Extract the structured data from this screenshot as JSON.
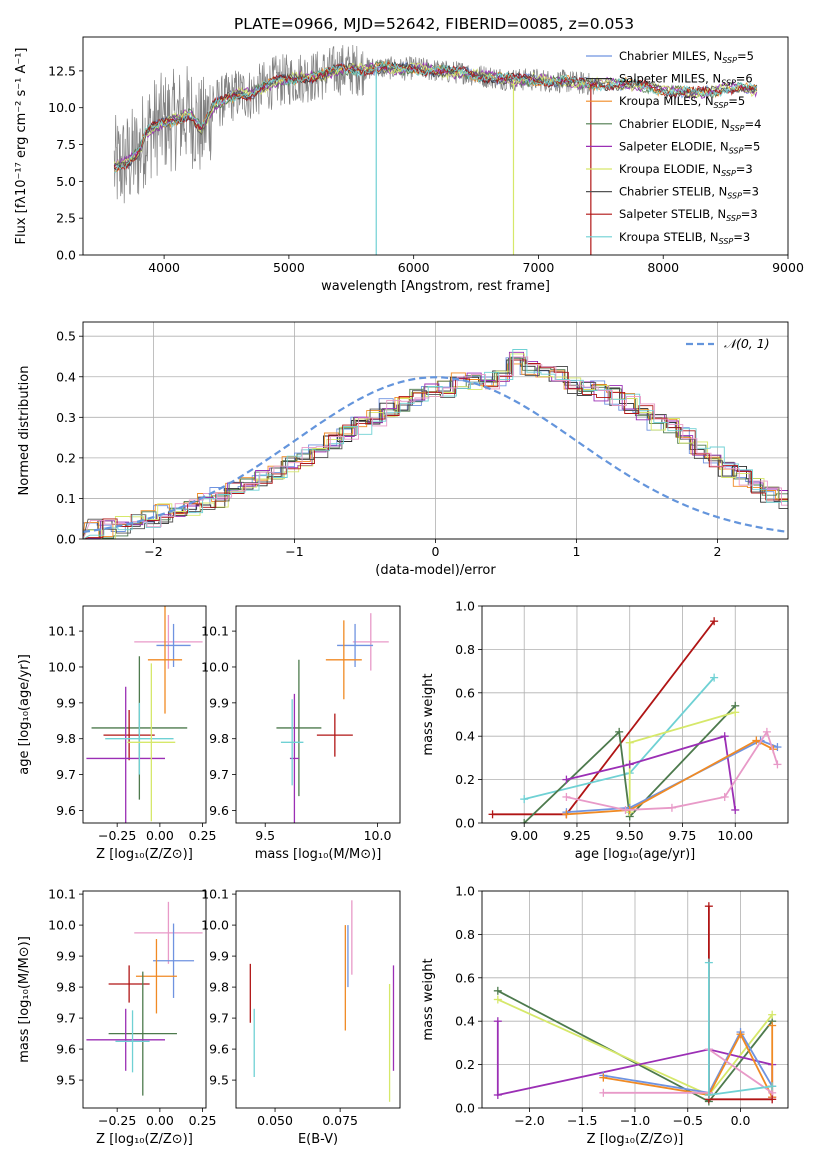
{
  "figure_title": "PLATE=0966, MJD=52642, FIBERID=0085, z=0.053",
  "series_colors": [
    "#6f93e0",
    "#2b2b2b",
    "#f08a24",
    "#4d7a4d",
    "#9b2fb5",
    "#d6e86a",
    "#555555",
    "#b01515",
    "#6fd1d4"
  ],
  "chart_data": [
    {
      "type": "line",
      "panel": "spectrum",
      "xlabel": "wavelength [Angstrom, rest frame]",
      "ylabel": "Flux [fλ10⁻¹⁷ erg cm⁻² s⁻¹ A⁻¹]",
      "xlim": [
        3350,
        9000
      ],
      "ylim": [
        0,
        14.8
      ],
      "xticks": [
        "4000",
        "5000",
        "6000",
        "7000",
        "8000",
        "9000"
      ],
      "xtick_values": [
        4000,
        5000,
        6000,
        7000,
        8000,
        9000
      ],
      "yticks": [
        "0.0",
        "2.5",
        "5.0",
        "7.5",
        "10.0",
        "12.5"
      ],
      "ytick_values": [
        0,
        2.5,
        5,
        7.5,
        10,
        12.5
      ],
      "grid": false,
      "legend_position": "right",
      "data_series": {
        "name": "",
        "color": "#808080",
        "x_range": [
          3600,
          7450
        ]
      },
      "model_continuum": {
        "x": [
          3600,
          3700,
          3800,
          3850,
          3900,
          4000,
          4100,
          4200,
          4300,
          4400,
          4500,
          4600,
          4700,
          4800,
          4900,
          5000,
          5100,
          5200,
          5300,
          5400,
          5500,
          5600,
          5700,
          5800,
          5900,
          6000,
          6100,
          6200,
          6300,
          6400,
          6500,
          6600,
          6700,
          6800,
          6900,
          7000,
          7100,
          7200,
          7300,
          7400,
          7500,
          7600,
          7700,
          7800,
          7900,
          8000,
          8100,
          8200,
          8300,
          8400,
          8500,
          8600,
          8700
        ],
        "y": [
          6.0,
          6.3,
          7.0,
          8.2,
          8.6,
          9.0,
          9.2,
          9.6,
          8.5,
          10.2,
          10.6,
          11.0,
          10.9,
          11.4,
          11.8,
          11.9,
          12.1,
          12.1,
          12.3,
          12.6,
          12.6,
          12.6,
          12.7,
          12.7,
          12.6,
          12.7,
          12.6,
          12.5,
          12.4,
          12.4,
          12.2,
          12.1,
          12.0,
          11.9,
          11.9,
          11.9,
          11.8,
          11.8,
          11.7,
          11.6,
          11.6,
          11.6,
          11.6,
          11.5,
          11.4,
          11.2,
          11.1,
          11.0,
          11.0,
          11.1,
          11.3,
          11.4,
          11.2
        ]
      },
      "series": [
        {
          "name": "Chabrier MILES, N",
          "sub": "SSP",
          "suffix": "=5",
          "color": "#6f93e0"
        },
        {
          "name": "Salpeter MILES, N",
          "sub": "SSP",
          "suffix": "=6",
          "color": "#2b2b2b"
        },
        {
          "name": "Kroupa MILES, N",
          "sub": "SSP",
          "suffix": "=5",
          "color": "#f08a24"
        },
        {
          "name": "Chabrier ELODIE, N",
          "sub": "SSP",
          "suffix": "=4",
          "color": "#4d7a4d"
        },
        {
          "name": "Salpeter ELODIE, N",
          "sub": "SSP",
          "suffix": "=5",
          "color": "#9b2fb5"
        },
        {
          "name": "Kroupa ELODIE, N",
          "sub": "SSP",
          "suffix": "=3",
          "color": "#d6e86a"
        },
        {
          "name": "Chabrier STELIB, N",
          "sub": "SSP",
          "suffix": "=3",
          "color": "#555555"
        },
        {
          "name": "Salpeter STELIB, N",
          "sub": "SSP",
          "suffix": "=3",
          "color": "#b01515"
        },
        {
          "name": "Kroupa STELIB, N",
          "sub": "SSP",
          "suffix": "=3",
          "color": "#6fd1d4"
        }
      ]
    },
    {
      "type": "line",
      "panel": "residuals",
      "xlabel": "(data-model)/error",
      "ylabel": "Normed distribution",
      "xlim": [
        -2.5,
        2.5
      ],
      "ylim": [
        0,
        0.535
      ],
      "xticks": [
        "−2",
        "−1",
        "0",
        "1",
        "2"
      ],
      "xtick_values": [
        -2,
        -1,
        0,
        1,
        2
      ],
      "yticks": [
        "0.0",
        "0.1",
        "0.2",
        "0.3",
        "0.4",
        "0.5"
      ],
      "ytick_values": [
        0,
        0.1,
        0.2,
        0.3,
        0.4,
        0.5
      ],
      "grid": true,
      "legend_position": "top-right",
      "legend": "𝒩(0, 1)",
      "bin_width": 0.1,
      "base_hist": {
        "x_start": -2.5,
        "values": [
          0.02,
          0.02,
          0.03,
          0.04,
          0.05,
          0.06,
          0.07,
          0.08,
          0.09,
          0.1,
          0.12,
          0.13,
          0.15,
          0.16,
          0.18,
          0.2,
          0.22,
          0.24,
          0.26,
          0.28,
          0.3,
          0.32,
          0.33,
          0.35,
          0.36,
          0.37,
          0.38,
          0.39,
          0.39,
          0.4,
          0.45,
          0.42,
          0.41,
          0.4,
          0.38,
          0.37,
          0.36,
          0.35,
          0.33,
          0.31,
          0.29,
          0.27,
          0.25,
          0.22,
          0.2,
          0.17,
          0.15,
          0.13,
          0.11,
          0.09,
          0.07,
          0.06,
          0.05,
          0.04,
          0.04,
          0.03,
          0.03,
          0.02,
          0.02,
          0.02
        ]
      },
      "normal_curve": {
        "mean": 0,
        "std": 1,
        "color": "#6495dc",
        "dash": true
      }
    },
    {
      "type": "scatter",
      "panel": "age-vs-Z",
      "xlabel": "Z [log₁₀(Z/Z⊙)]",
      "ylabel": "age  [log₁₀(age/yr)]",
      "xlim": [
        -0.45,
        0.27
      ],
      "ylim": [
        9.565,
        10.17
      ],
      "xticks": [
        "−0.25",
        "0.00",
        "0.25"
      ],
      "xtick_values": [
        -0.25,
        0,
        0.25
      ],
      "yticks": [
        "9.6",
        "9.7",
        "9.8",
        "9.9",
        "10.0",
        "10.1"
      ],
      "ytick_values": [
        9.6,
        9.7,
        9.8,
        9.9,
        10.0,
        10.1
      ],
      "grid": false,
      "points": [
        {
          "x": 0.05,
          "xerr": 0.2,
          "y": 10.07,
          "yerr": 0.075,
          "color": "#e89ac8"
        },
        {
          "x": 0.08,
          "xerr": 0.1,
          "y": 10.06,
          "yerr": 0.06,
          "color": "#6f93e0"
        },
        {
          "x": 0.03,
          "xerr": 0.1,
          "y": 10.02,
          "yerr": 0.15,
          "color": "#f08a24"
        },
        {
          "x": -0.12,
          "xerr": 0.28,
          "y": 9.83,
          "yerr": 0.2,
          "color": "#4d7a4d"
        },
        {
          "x": -0.18,
          "xerr": 0.15,
          "y": 9.81,
          "yerr": 0.07,
          "color": "#b01515"
        },
        {
          "x": -0.2,
          "xerr": 0.23,
          "y": 9.745,
          "yerr": 0.2,
          "color": "#9b2fb5"
        },
        {
          "x": -0.12,
          "xerr": 0.2,
          "y": 9.8,
          "yerr": 0.1,
          "color": "#6fd1d4"
        },
        {
          "x": -0.05,
          "xerr": 0.14,
          "y": 9.79,
          "yerr": 0.22,
          "color": "#d6e86a"
        }
      ]
    },
    {
      "type": "scatter",
      "panel": "age-vs-mass",
      "xlabel": "mass [log₁₀(M/M⊙)]",
      "ylabel": "",
      "xlim": [
        9.37,
        10.1
      ],
      "ylim": [
        9.565,
        10.17
      ],
      "xticks": [
        "9.5",
        "10.0"
      ],
      "xtick_values": [
        9.5,
        10.0
      ],
      "yticks": [
        "9.6",
        "9.7",
        "9.8",
        "9.9",
        "10.0",
        "10.1"
      ],
      "ytick_values": [
        9.6,
        9.7,
        9.8,
        9.9,
        10.0,
        10.1
      ],
      "grid": false,
      "points": [
        {
          "x": 9.97,
          "xerr": 0.08,
          "y": 10.07,
          "yerr": 0.08,
          "color": "#e89ac8"
        },
        {
          "x": 9.9,
          "xerr": 0.08,
          "y": 10.06,
          "yerr": 0.06,
          "color": "#6f93e0"
        },
        {
          "x": 9.85,
          "xerr": 0.08,
          "y": 10.02,
          "yerr": 0.11,
          "color": "#f08a24"
        },
        {
          "x": 9.65,
          "xerr": 0.1,
          "y": 9.83,
          "yerr": 0.19,
          "color": "#4d7a4d"
        },
        {
          "x": 9.81,
          "xerr": 0.08,
          "y": 9.81,
          "yerr": 0.06,
          "color": "#b01515"
        },
        {
          "x": 9.63,
          "xerr": 0.02,
          "y": 9.745,
          "yerr": 0.18,
          "color": "#9b2fb5"
        },
        {
          "x": 9.62,
          "xerr": 0.05,
          "y": 9.79,
          "yerr": 0.12,
          "color": "#6fd1d4"
        }
      ]
    },
    {
      "type": "line",
      "panel": "mass-weight-vs-age",
      "xlabel": "age  [log₁₀(age/yr)]",
      "ylabel": "mass weight",
      "xlim": [
        8.8,
        10.25
      ],
      "ylim": [
        0,
        1.0
      ],
      "xticks": [
        "9.00",
        "9.25",
        "9.50",
        "9.75",
        "10.00"
      ],
      "xtick_values": [
        9.0,
        9.25,
        9.5,
        9.75,
        10.0
      ],
      "yticks": [
        "0.0",
        "0.2",
        "0.4",
        "0.6",
        "0.8",
        "1.0"
      ],
      "ytick_values": [
        0,
        0.2,
        0.4,
        0.6,
        0.8,
        1.0
      ],
      "grid": true,
      "series": [
        {
          "color": "#b01515",
          "x": [
            8.85,
            9.2,
            9.9
          ],
          "y": [
            0.04,
            0.04,
            0.93
          ]
        },
        {
          "color": "#6fd1d4",
          "x": [
            9.0,
            9.5,
            9.9
          ],
          "y": [
            0.11,
            0.23,
            0.67
          ]
        },
        {
          "color": "#4d7a4d",
          "x": [
            9.0,
            9.45,
            9.5,
            10.0
          ],
          "y": [
            0.0,
            0.42,
            0.03,
            0.54
          ]
        },
        {
          "color": "#d6e86a",
          "x": [
            9.5,
            9.5,
            10.0
          ],
          "y": [
            0.05,
            0.37,
            0.51
          ]
        },
        {
          "color": "#9b2fb5",
          "x": [
            9.2,
            9.5,
            9.95,
            10.0
          ],
          "y": [
            0.2,
            0.27,
            0.4,
            0.06
          ]
        },
        {
          "color": "#6f93e0",
          "x": [
            9.2,
            9.5,
            10.12,
            10.2
          ],
          "y": [
            0.05,
            0.07,
            0.38,
            0.35
          ]
        },
        {
          "color": "#f08a24",
          "x": [
            9.2,
            9.5,
            10.1,
            10.18
          ],
          "y": [
            0.04,
            0.06,
            0.38,
            0.34
          ]
        },
        {
          "color": "#e89ac8",
          "x": [
            9.2,
            9.48,
            9.7,
            9.95,
            10.15,
            10.2
          ],
          "y": [
            0.12,
            0.06,
            0.07,
            0.12,
            0.42,
            0.27
          ]
        }
      ]
    },
    {
      "type": "scatter",
      "panel": "mass-vs-Z",
      "xlabel": "Z [log₁₀(Z/Z⊙)]",
      "ylabel": "mass [log₁₀(M/M⊙)]",
      "xlim": [
        -0.45,
        0.27
      ],
      "ylim": [
        9.41,
        10.11
      ],
      "xticks": [
        "−0.25",
        "0.00",
        "0.25"
      ],
      "xtick_values": [
        -0.25,
        0,
        0.25
      ],
      "yticks": [
        "9.5",
        "9.6",
        "9.7",
        "9.8",
        "9.9",
        "10.0",
        "10.1"
      ],
      "ytick_values": [
        9.5,
        9.6,
        9.7,
        9.8,
        9.9,
        10.0,
        10.1
      ],
      "grid": false,
      "points": [
        {
          "x": 0.05,
          "xerr": 0.2,
          "y": 9.975,
          "yerr": 0.1,
          "color": "#e89ac8"
        },
        {
          "x": 0.08,
          "xerr": 0.12,
          "y": 9.885,
          "yerr": 0.12,
          "color": "#6f93e0"
        },
        {
          "x": -0.02,
          "xerr": 0.12,
          "y": 9.835,
          "yerr": 0.12,
          "color": "#f08a24"
        },
        {
          "x": -0.18,
          "xerr": 0.12,
          "y": 9.81,
          "yerr": 0.06,
          "color": "#b01515"
        },
        {
          "x": -0.1,
          "xerr": 0.2,
          "y": 9.65,
          "yerr": 0.2,
          "color": "#4d7a4d"
        },
        {
          "x": -0.2,
          "xerr": 0.23,
          "y": 9.63,
          "yerr": 0.1,
          "color": "#9b2fb5"
        },
        {
          "x": -0.16,
          "xerr": 0.1,
          "y": 9.625,
          "yerr": 0.1,
          "color": "#6fd1d4"
        }
      ]
    },
    {
      "type": "scatter",
      "panel": "mass-vs-EBV",
      "xlabel": "E(B-V)",
      "ylabel": "",
      "xlim": [
        0.035,
        0.098
      ],
      "ylim": [
        9.41,
        10.11
      ],
      "xticks": [
        "0.050",
        "0.075"
      ],
      "xtick_values": [
        0.05,
        0.075
      ],
      "yticks": [
        "9.5",
        "9.6",
        "9.7",
        "9.8",
        "9.9",
        "10.0",
        "10.1"
      ],
      "ytick_values": [
        9.5,
        9.6,
        9.7,
        9.8,
        9.9,
        10.0,
        10.1
      ],
      "grid": false,
      "points": [
        {
          "x": 0.0405,
          "xerr": 0,
          "y": 9.78,
          "yerr": 0.095,
          "color": "#b01515"
        },
        {
          "x": 0.042,
          "xerr": 0,
          "y": 9.62,
          "yerr": 0.11,
          "color": "#6fd1d4"
        },
        {
          "x": 0.077,
          "xerr": 0,
          "y": 9.83,
          "yerr": 0.17,
          "color": "#f08a24"
        },
        {
          "x": 0.078,
          "xerr": 0,
          "y": 9.9,
          "yerr": 0.1,
          "color": "#6f93e0"
        },
        {
          "x": 0.0795,
          "xerr": 0,
          "y": 9.96,
          "yerr": 0.12,
          "color": "#e89ac8"
        },
        {
          "x": 0.094,
          "xerr": 0,
          "y": 9.62,
          "yerr": 0.19,
          "color": "#d6e86a"
        },
        {
          "x": 0.0955,
          "xerr": 0,
          "y": 9.7,
          "yerr": 0.17,
          "color": "#9b2fb5"
        }
      ]
    },
    {
      "type": "line",
      "panel": "mass-weight-vs-Z",
      "xlabel": "Z [log₁₀(Z/Z⊙)]",
      "ylabel": "mass weight",
      "xlim": [
        -2.45,
        0.45
      ],
      "ylim": [
        0,
        1.0
      ],
      "xticks": [
        "−2.0",
        "−1.5",
        "−1.0",
        "−0.5",
        "0.0"
      ],
      "xtick_values": [
        -2.0,
        -1.5,
        -1.0,
        -0.5,
        0.0
      ],
      "yticks": [
        "0.0",
        "0.2",
        "0.4",
        "0.6",
        "0.8",
        "1.0"
      ],
      "ytick_values": [
        0,
        0.2,
        0.4,
        0.6,
        0.8,
        1.0
      ],
      "grid": true,
      "series": [
        {
          "color": "#4d7a4d",
          "x": [
            -2.3,
            -0.3,
            0.3
          ],
          "y": [
            0.54,
            0.03,
            0.4
          ]
        },
        {
          "color": "#d6e86a",
          "x": [
            -2.3,
            -0.3,
            0.3
          ],
          "y": [
            0.5,
            0.06,
            0.43
          ]
        },
        {
          "color": "#9b2fb5",
          "x": [
            -2.3,
            -2.3,
            -0.3,
            0.3,
            0.3
          ],
          "y": [
            0.4,
            0.06,
            0.27,
            0.2,
            0.05
          ]
        },
        {
          "color": "#6f93e0",
          "x": [
            -1.3,
            -0.3,
            0.0,
            0.3
          ],
          "y": [
            0.15,
            0.07,
            0.35,
            0.1
          ]
        },
        {
          "color": "#f08a24",
          "x": [
            -1.3,
            -0.3,
            0.0,
            0.3,
            0.3
          ],
          "y": [
            0.14,
            0.06,
            0.34,
            0.05,
            0.38
          ]
        },
        {
          "color": "#e89ac8",
          "x": [
            -1.3,
            -0.3,
            -0.3,
            0.3,
            0.3
          ],
          "y": [
            0.07,
            0.07,
            0.27,
            0.07,
            0.04
          ]
        },
        {
          "color": "#b01515",
          "x": [
            -0.3,
            -0.3,
            0.3
          ],
          "y": [
            0.93,
            0.04,
            0.04
          ]
        },
        {
          "color": "#6fd1d4",
          "x": [
            -0.3,
            -0.3,
            0.3
          ],
          "y": [
            0.67,
            0.06,
            0.1
          ]
        }
      ]
    }
  ]
}
